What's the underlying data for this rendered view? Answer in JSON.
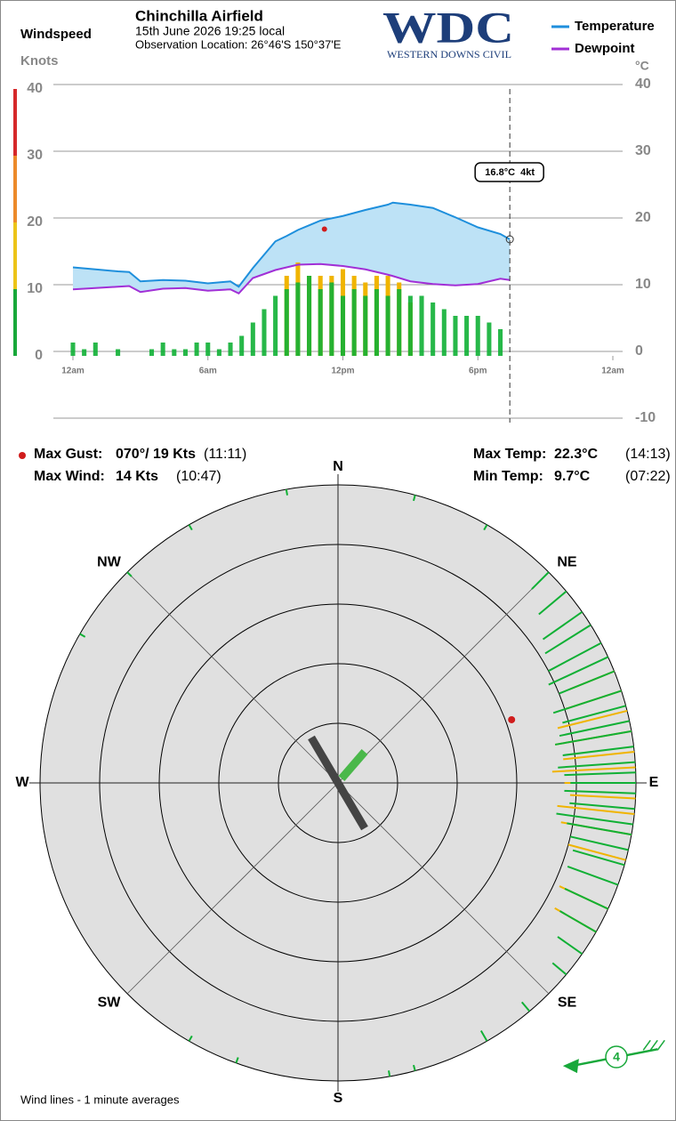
{
  "header": {
    "chart_label": "Windspeed",
    "station": "Chinchilla Airfield",
    "date": "15th June 2026  19:25 local",
    "location": "Observation Location: 26°46'S 150°37'E",
    "logo": "WDC",
    "logo_sub": "WESTERN DOWNS CIVIL"
  },
  "chart_data": [
    {
      "type": "line",
      "y_label": "°C",
      "x": [
        0,
        1,
        2,
        2.5,
        3,
        4,
        5,
        6,
        7,
        7.37,
        8,
        9,
        9.5,
        10,
        11,
        12,
        13,
        14,
        14.22,
        15,
        16,
        17,
        18,
        19,
        19.42
      ],
      "series": [
        {
          "name": "Temperature",
          "color": "#1e8fdc",
          "values": [
            12.6,
            12.3,
            12,
            11.9,
            10.5,
            10.7,
            10.6,
            10.2,
            10.5,
            9.7,
            12.5,
            16.5,
            17.3,
            18.2,
            19.6,
            20.3,
            21.2,
            22,
            22.3,
            22,
            21.5,
            20.1,
            18.6,
            17.6,
            16.8
          ]
        },
        {
          "name": "Dewpoint",
          "color": "#a12fd6",
          "values": [
            9.3,
            9.5,
            9.7,
            9.8,
            8.9,
            9.4,
            9.5,
            9.1,
            9.3,
            8.7,
            11,
            12.2,
            12.6,
            13,
            13.1,
            12.8,
            12.3,
            11.5,
            11.3,
            10.5,
            10.1,
            9.9,
            10.1,
            10.9,
            10.7
          ]
        }
      ],
      "fill_color": "#bde2f6",
      "xlim": [
        0,
        24
      ],
      "xticks": [
        {
          "value": 0,
          "label": "12am"
        },
        {
          "value": 6,
          "label": "6am"
        },
        {
          "value": 12,
          "label": "12pm"
        },
        {
          "value": 18,
          "label": "6pm"
        },
        {
          "value": 24,
          "label": "12am"
        }
      ],
      "ylim": [
        -10,
        40
      ],
      "yticks": [
        40,
        30,
        20,
        10,
        0,
        -10
      ],
      "grid": true,
      "cursor_x": 19.42,
      "annotation": "16.8°C  4kt"
    },
    {
      "type": "bar",
      "y_label": "Knots",
      "color": "#10b035",
      "gust_color": "#f0b400",
      "x": [
        0,
        0.5,
        1,
        1.5,
        2,
        2.5,
        3,
        3.5,
        4,
        4.5,
        5,
        5.5,
        6,
        6.5,
        7,
        7.5,
        8,
        8.5,
        9,
        9.5,
        10,
        10.5,
        11,
        11.5,
        12,
        12.5,
        13,
        13.5,
        14,
        14.5,
        15,
        15.5,
        16,
        16.5,
        17,
        17.5,
        18,
        18.5,
        19
      ],
      "values": [
        2,
        1,
        2,
        0,
        1,
        0,
        0,
        1,
        2,
        1,
        1,
        2,
        2,
        1,
        2,
        3,
        5,
        7,
        9,
        10,
        11,
        12,
        10,
        11,
        9,
        10,
        9,
        10,
        9,
        10,
        9,
        9,
        8,
        7,
        6,
        6,
        6,
        5,
        4
      ],
      "gusts": [
        null,
        null,
        null,
        null,
        null,
        null,
        null,
        null,
        null,
        null,
        null,
        null,
        null,
        null,
        null,
        null,
        null,
        null,
        null,
        12,
        14,
        12,
        12,
        12,
        13,
        12,
        11,
        12,
        12,
        11,
        8,
        null,
        null,
        null,
        null,
        null,
        null,
        null,
        null
      ],
      "max_gust": {
        "x": 11.18,
        "value": 19
      },
      "ylim": [
        0,
        40
      ],
      "yticks": [
        0,
        10,
        20,
        30,
        40
      ]
    },
    {
      "type": "polar",
      "compass": [
        "N",
        "NE",
        "E",
        "SE",
        "S",
        "SW",
        "W",
        "NW"
      ],
      "wind_directions": [
        45,
        50,
        55,
        58,
        62,
        65,
        68,
        72,
        75,
        78,
        80,
        83,
        86,
        88,
        90,
        92,
        95,
        98,
        100,
        103,
        106,
        110,
        115,
        120,
        125,
        130,
        140,
        150,
        165,
        170,
        200,
        210,
        300,
        315,
        330,
        350,
        15,
        30
      ],
      "wind_speeds": [
        4,
        6,
        8,
        9,
        10,
        11,
        10,
        12,
        11,
        12,
        13,
        12,
        13,
        12,
        11,
        12,
        11,
        13,
        11,
        10,
        9,
        9,
        8,
        7,
        5,
        3,
        2,
        2,
        1,
        1,
        1,
        1,
        1,
        1,
        1,
        1,
        1,
        1
      ],
      "gust_directions": [
        68,
        72,
        76,
        80,
        84,
        87,
        90,
        93,
        96,
        100,
        105,
        115,
        120
      ],
      "gust_speeds": [
        8,
        10,
        12,
        13,
        12,
        14,
        12,
        11,
        13,
        12,
        10,
        9,
        8
      ],
      "max_gust": {
        "direction": 70,
        "speed": 19
      },
      "current_direction": 80,
      "current_speed": 4,
      "note": "Wind lines - 1 minute averages"
    }
  ],
  "stats": {
    "max_gust_label": "Max Gust:",
    "max_gust_value": "070°/ 19 Kts",
    "max_gust_time": "(11:11)",
    "max_wind_label": "Max Wind:",
    "max_wind_value": "14 Kts",
    "max_wind_time": "(10:47)",
    "max_temp_label": "Max Temp:",
    "max_temp_value": "22.3°C",
    "max_temp_time": "(14:13)",
    "min_temp_label": "Min Temp:",
    "min_temp_value": "9.7°C",
    "min_temp_time": "(07:22)"
  }
}
